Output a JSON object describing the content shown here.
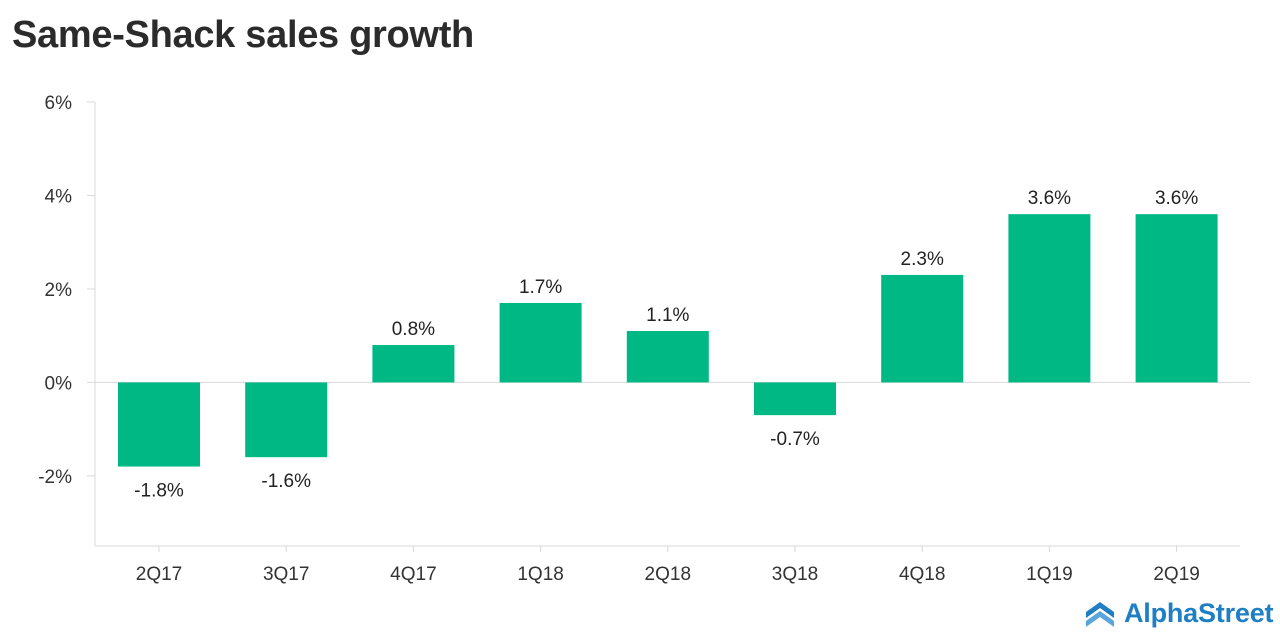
{
  "chart_data": {
    "type": "bar",
    "title": "Same-Shack sales growth",
    "categories": [
      "2Q17",
      "3Q17",
      "4Q17",
      "1Q18",
      "2Q18",
      "3Q18",
      "4Q18",
      "1Q19",
      "2Q19"
    ],
    "values": [
      -1.8,
      -1.6,
      0.8,
      1.7,
      1.1,
      -0.7,
      2.3,
      3.6,
      3.6
    ],
    "data_labels": [
      "-1.8%",
      "-1.6%",
      "0.8%",
      "1.7%",
      "1.1%",
      "-0.7%",
      "2.3%",
      "3.6%",
      "3.6%"
    ],
    "y_ticks": [
      6,
      4,
      2,
      0,
      -2
    ],
    "y_tick_labels": [
      "6%",
      "4%",
      "2%",
      "0%",
      "-2%"
    ],
    "ylim": [
      -3.5,
      6
    ],
    "xlabel": "",
    "ylabel": "",
    "grid": false,
    "legend": "none",
    "bar_color": "#00b884"
  },
  "brand": {
    "name": "AlphaStreet",
    "color": "#1f7fc4"
  }
}
